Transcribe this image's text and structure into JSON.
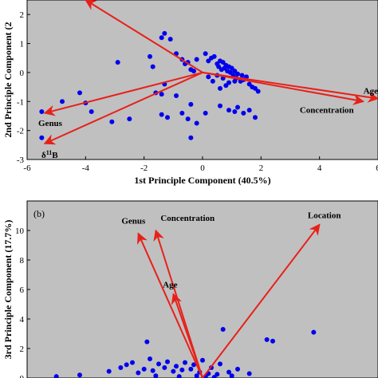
{
  "colors": {
    "plot_bg": "#c0c0c0",
    "points": "#0000ee",
    "vectors": "#e8201a",
    "axis": "#000000"
  },
  "chart_data": [
    {
      "type": "scatter",
      "panel_tag": "",
      "xlabel": "1st Principle Component (40.5%)",
      "ylabel": "2nd Principle Component (2",
      "xlim": [
        -6,
        6
      ],
      "ylim": [
        -3,
        2.5
      ],
      "xticks": [
        -6,
        -4,
        -2,
        0,
        2,
        4,
        6
      ],
      "yticks": [
        -3,
        -2,
        -1,
        0,
        1,
        2
      ],
      "xtick_labels": [
        "-6",
        "-4",
        "-2",
        "0",
        "2",
        "4",
        "6"
      ],
      "ytick_labels": [
        "-3",
        "-2",
        "-1",
        "0",
        "1",
        "2"
      ],
      "vectors": [
        {
          "label": "",
          "end": [
            -4,
            2.5
          ]
        },
        {
          "label": "Age",
          "end": [
            6,
            -0.9
          ]
        },
        {
          "label": "Concentration",
          "end": [
            5.5,
            -1.0
          ]
        },
        {
          "label": "Genus",
          "end": [
            -5.4,
            -1.4
          ]
        },
        {
          "label": "δ11B",
          "end": [
            -5.4,
            -2.45
          ]
        }
      ],
      "points": [
        [
          -1.4,
          1.2
        ],
        [
          -1.3,
          1.35
        ],
        [
          -1.1,
          1.15
        ],
        [
          -0.9,
          0.65
        ],
        [
          -0.7,
          0.45
        ],
        [
          -0.6,
          0.3
        ],
        [
          -0.5,
          0.35
        ],
        [
          -0.4,
          0.1
        ],
        [
          -0.3,
          0.05
        ],
        [
          -0.2,
          0.45
        ],
        [
          0.1,
          0.65
        ],
        [
          0.2,
          0.4
        ],
        [
          0.3,
          0.5
        ],
        [
          0.4,
          0.55
        ],
        [
          0.5,
          0.3
        ],
        [
          0.55,
          0.2
        ],
        [
          0.6,
          0.4
        ],
        [
          0.65,
          0.1
        ],
        [
          0.7,
          0.35
        ],
        [
          0.75,
          0.15
        ],
        [
          0.8,
          0.25
        ],
        [
          0.85,
          0.05
        ],
        [
          0.9,
          0.2
        ],
        [
          0.95,
          0.0
        ],
        [
          1.0,
          0.15
        ],
        [
          1.05,
          -0.1
        ],
        [
          1.1,
          0.05
        ],
        [
          1.15,
          -0.2
        ],
        [
          1.2,
          -0.05
        ],
        [
          1.3,
          -0.3
        ],
        [
          1.35,
          -0.1
        ],
        [
          1.4,
          -0.25
        ],
        [
          1.5,
          -0.15
        ],
        [
          1.6,
          -0.4
        ],
        [
          1.7,
          -0.5
        ],
        [
          1.8,
          -0.55
        ],
        [
          1.9,
          -0.65
        ],
        [
          0.2,
          -0.15
        ],
        [
          0.35,
          -0.3
        ],
        [
          0.5,
          -0.1
        ],
        [
          0.7,
          -0.2
        ],
        [
          0.9,
          -0.35
        ],
        [
          1.1,
          -0.3
        ],
        [
          0.6,
          -0.55
        ],
        [
          0.8,
          -0.45
        ],
        [
          -2.9,
          0.35
        ],
        [
          -1.8,
          0.55
        ],
        [
          -1.7,
          0.2
        ],
        [
          -4.2,
          -0.7
        ],
        [
          -4.8,
          -1.0
        ],
        [
          -1.6,
          -0.7
        ],
        [
          -1.4,
          -0.75
        ],
        [
          -1.3,
          -0.4
        ],
        [
          -0.9,
          -0.8
        ],
        [
          -0.4,
          -1.1
        ],
        [
          -0.7,
          -1.4
        ],
        [
          -0.5,
          -1.6
        ],
        [
          -1.4,
          -1.45
        ],
        [
          -1.2,
          -1.55
        ],
        [
          -0.2,
          -1.75
        ],
        [
          0.1,
          -1.4
        ],
        [
          -0.4,
          -2.25
        ],
        [
          0.6,
          -1.15
        ],
        [
          0.9,
          -1.3
        ],
        [
          1.1,
          -1.35
        ],
        [
          1.2,
          -1.2
        ],
        [
          1.4,
          -1.4
        ],
        [
          1.6,
          -1.3
        ],
        [
          1.8,
          -1.55
        ],
        [
          -5.5,
          -1.35
        ],
        [
          -5.5,
          -2.25
        ],
        [
          -3.8,
          -1.35
        ],
        [
          -4.0,
          -1.05
        ],
        [
          -2.5,
          -1.6
        ],
        [
          -3.1,
          -1.7
        ]
      ]
    },
    {
      "type": "scatter",
      "panel_tag": "(b)",
      "xlabel": "",
      "ylabel": "3rd Principle Component (17.7%)",
      "xlim": [
        -6,
        6
      ],
      "ylim": [
        0,
        12
      ],
      "yticks": [
        0,
        2,
        4,
        6,
        8,
        10
      ],
      "ytick_labels": [
        "0",
        "2",
        "4",
        "6",
        "8",
        "10"
      ],
      "vectors": [
        {
          "label": "Genus",
          "end": [
            -2.2,
            9.8
          ]
        },
        {
          "label": "Concentration",
          "end": [
            -1.6,
            10.0
          ]
        },
        {
          "label": "Location",
          "end": [
            4.0,
            10.4
          ]
        },
        {
          "label": "Age",
          "end": [
            -1.0,
            5.7
          ]
        }
      ],
      "points": [
        [
          3.8,
          3.1
        ],
        [
          2.2,
          2.6
        ],
        [
          2.4,
          2.5
        ],
        [
          0.7,
          3.3
        ],
        [
          -1.9,
          2.45
        ],
        [
          -2.4,
          1.05
        ],
        [
          -1.8,
          1.3
        ],
        [
          -1.5,
          0.95
        ],
        [
          -1.2,
          1.1
        ],
        [
          -0.9,
          0.8
        ],
        [
          -0.6,
          1.05
        ],
        [
          -0.3,
          0.9
        ],
        [
          0.0,
          1.2
        ],
        [
          0.3,
          0.7
        ],
        [
          0.6,
          0.95
        ],
        [
          -2.0,
          0.6
        ],
        [
          -1.7,
          0.5
        ],
        [
          -1.3,
          0.7
        ],
        [
          -1.0,
          0.45
        ],
        [
          -0.7,
          0.55
        ],
        [
          -0.4,
          0.6
        ],
        [
          -0.1,
          0.4
        ],
        [
          0.2,
          0.3
        ],
        [
          0.5,
          0.25
        ],
        [
          0.9,
          0.4
        ],
        [
          1.2,
          0.6
        ],
        [
          -3.2,
          0.45
        ],
        [
          -2.8,
          0.7
        ],
        [
          -2.6,
          0.9
        ],
        [
          -2.2,
          0.35
        ],
        [
          -0.2,
          0.15
        ],
        [
          0.1,
          0.1
        ],
        [
          1.0,
          0.15
        ],
        [
          -5.0,
          0.1
        ],
        [
          -4.2,
          0.2
        ],
        [
          -1.6,
          0.15
        ],
        [
          -0.8,
          0.1
        ],
        [
          0.4,
          0.05
        ],
        [
          1.6,
          0.3
        ]
      ]
    }
  ]
}
